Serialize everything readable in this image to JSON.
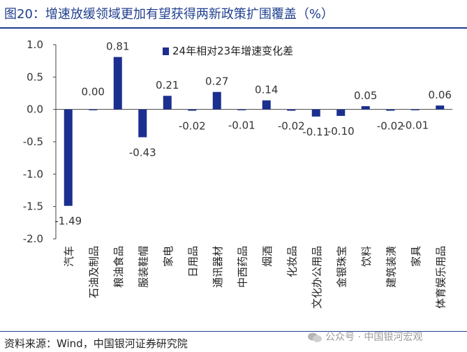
{
  "header": {
    "title": "图20：增速放缓领域更加有望获得两新政策扩围覆盖（%）"
  },
  "footer": {
    "source": "资料来源：Wind，中国银河证券研究院",
    "watermark": "公众号 · 中国银河宏观"
  },
  "colors": {
    "bar": "#1a2f8f",
    "title": "#1f3f8f",
    "axis": "#444444"
  },
  "chart_data": {
    "type": "bar",
    "title": "",
    "xlabel": "",
    "ylabel": "",
    "ylim": [
      -2.0,
      1.0
    ],
    "yticks": [
      "1.0",
      "0.5",
      "0.0",
      "-0.5",
      "-1.0",
      "-1.5",
      "-2.0"
    ],
    "ytick_values": [
      1.0,
      0.5,
      0.0,
      -0.5,
      -1.0,
      -1.5,
      -2.0
    ],
    "legend": {
      "position": "top-right",
      "entries": [
        "24年相对23年增速变化差"
      ]
    },
    "grid": false,
    "categories": [
      "汽车",
      "石油及制品",
      "粮油食品",
      "服装鞋帽",
      "家电",
      "日用品",
      "通讯器材",
      "中西药品",
      "烟酒",
      "化妆品",
      "文化办公用品",
      "金银珠宝",
      "饮料",
      "建筑装潢",
      "家具",
      "体育娱乐用品"
    ],
    "series": [
      {
        "name": "24年相对23年增速变化差",
        "values": [
          -1.49,
          0.0,
          0.81,
          -0.43,
          0.21,
          -0.02,
          0.27,
          -0.01,
          0.14,
          -0.02,
          -0.11,
          -0.1,
          0.05,
          -0.02,
          -0.01,
          0.06
        ],
        "labels": [
          "-1.49",
          "0.00",
          "0.81",
          "-0.43",
          "0.21",
          "-0.02",
          "0.27",
          "-0.01",
          "0.14",
          "-0.02",
          "-0.11",
          "-0.10",
          "0.05",
          "-0.02",
          "-0.01",
          "0.06"
        ]
      }
    ]
  }
}
